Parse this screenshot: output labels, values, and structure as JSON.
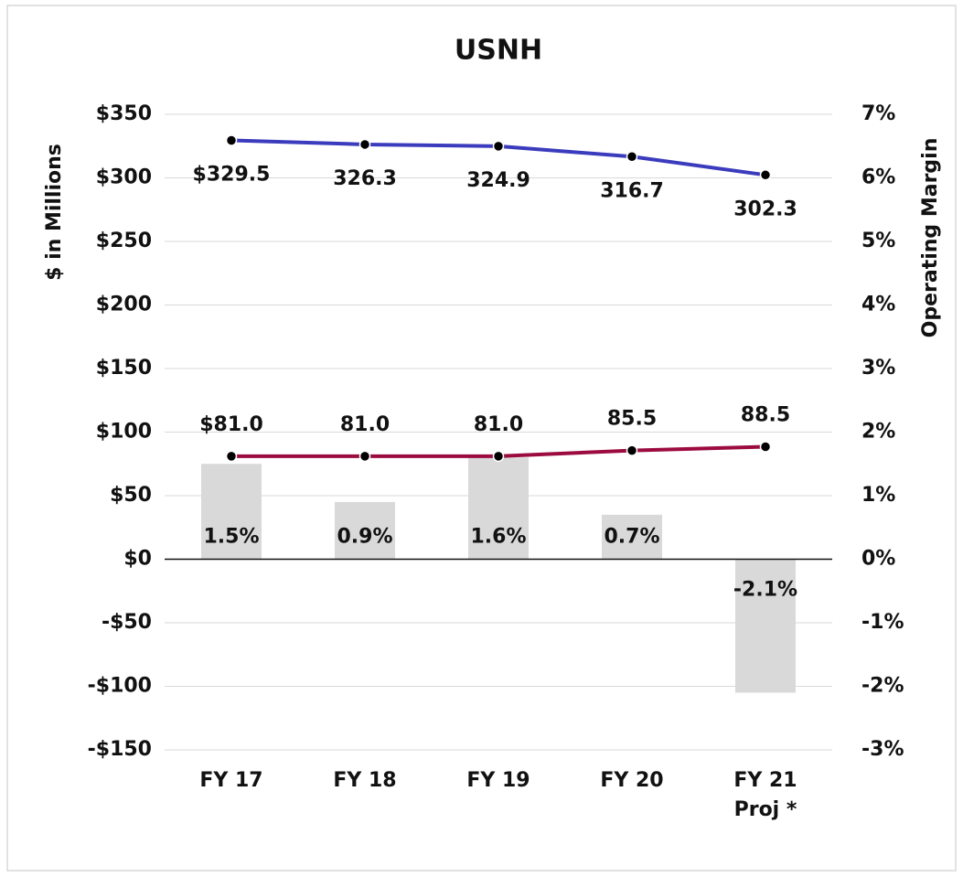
{
  "chart_data": {
    "type": "combo",
    "title": "USNH",
    "ylabel": "$ in Millions",
    "y2label": "Operating Margin",
    "categories": [
      "FY 17",
      "FY 18",
      "FY 19",
      "FY 20",
      "FY 21 Proj *"
    ],
    "ylim": [
      -150,
      350
    ],
    "yticks": [
      {
        "value": 350,
        "label": "$350"
      },
      {
        "value": 300,
        "label": "$300"
      },
      {
        "value": 250,
        "label": "$250"
      },
      {
        "value": 200,
        "label": "$200"
      },
      {
        "value": 150,
        "label": "$150"
      },
      {
        "value": 100,
        "label": "$100"
      },
      {
        "value": 50,
        "label": "$50"
      },
      {
        "value": 0,
        "label": "$0"
      },
      {
        "value": -50,
        "label": "-$50"
      },
      {
        "value": -100,
        "label": "-$100"
      },
      {
        "value": -150,
        "label": "-$150"
      }
    ],
    "y2lim": [
      -3,
      7
    ],
    "y2ticks": [
      {
        "value": 7,
        "label": "7%"
      },
      {
        "value": 6,
        "label": "6%"
      },
      {
        "value": 5,
        "label": "5%"
      },
      {
        "value": 4,
        "label": "4%"
      },
      {
        "value": 3,
        "label": "3%"
      },
      {
        "value": 2,
        "label": "2%"
      },
      {
        "value": 1,
        "label": "1%"
      },
      {
        "value": 0,
        "label": "0%"
      },
      {
        "value": -1,
        "label": "-1%"
      },
      {
        "value": -2,
        "label": "-2%"
      },
      {
        "value": -3,
        "label": "-3%"
      }
    ],
    "grid": true,
    "series": [
      {
        "type": "bar",
        "axis": "y2",
        "color": "#d9d9d9",
        "values": [
          1.5,
          0.9,
          1.6,
          0.7,
          -2.1
        ],
        "value_labels": [
          "1.5%",
          "0.9%",
          "1.6%",
          "0.7%",
          "-2.1%"
        ]
      },
      {
        "type": "line",
        "color": "#3b3bbd",
        "values": [
          329.5,
          326.3,
          324.9,
          316.7,
          302.3
        ],
        "value_labels": [
          "$329.5",
          "326.3",
          "324.9",
          "316.7",
          "302.3"
        ],
        "label_position": "below"
      },
      {
        "type": "line",
        "color": "#9c0b3f",
        "values": [
          81.0,
          81.0,
          81.0,
          85.5,
          88.5
        ],
        "value_labels": [
          "$81.0",
          "81.0",
          "81.0",
          "85.5",
          "88.5"
        ],
        "label_position": "above"
      }
    ]
  }
}
